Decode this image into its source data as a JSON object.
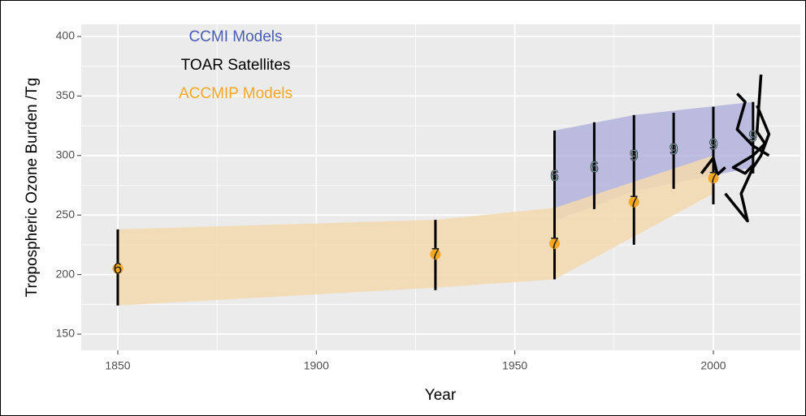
{
  "chart_data": {
    "type": "band",
    "xlabel": "Year",
    "ylabel": "Tropospheric Ozone Burden /Tg",
    "xlim": [
      1840.8,
      2021.9
    ],
    "ylim": [
      136.4,
      410.2
    ],
    "xticks": [
      1850,
      1900,
      1950,
      2000
    ],
    "yticks": [
      150,
      200,
      250,
      300,
      350,
      400
    ],
    "xminor": [
      1875,
      1925,
      1975
    ],
    "yminor": [
      175,
      225,
      275,
      325,
      375
    ],
    "grid": true,
    "series": [
      {
        "name": "CCMI Models",
        "color": "#4a5cb3",
        "band_color": "#b3b3dd",
        "label_color": "#a8e0ec",
        "band": {
          "x": [
            1960,
            1980,
            2010
          ],
          "lower": [
            245,
            270,
            290
          ],
          "upper": [
            321,
            334,
            345
          ]
        },
        "x": [
          1960,
          1970,
          1980,
          1990,
          2000,
          2010
        ],
        "values": [
          283,
          290,
          300,
          305,
          309,
          316
        ],
        "n": [
          6,
          6,
          9,
          9,
          9,
          9
        ]
      },
      {
        "name": "TOAR Satellites",
        "color": "#000000",
        "lines": [
          {
            "x": [
              2006,
              2008,
              2006,
              2010,
              2014
            ],
            "values": [
              352,
              345,
              322,
              308,
              300
            ]
          },
          {
            "x": [
              2012,
              2011,
              2013,
              2010,
              2005,
              2008,
              2010
            ],
            "values": [
              368,
              320,
              310,
              300,
              290,
              285,
              292
            ]
          },
          {
            "x": [
              2011,
              2014,
              2012,
              2010,
              2007,
              2008.6,
              2003
            ],
            "values": [
              342,
              318,
              300,
              290,
              268,
              245,
              268
            ]
          },
          {
            "x": [
              1997,
              2000,
              2001,
              2003
            ],
            "values": [
              285,
              298,
              284,
              290
            ]
          }
        ]
      },
      {
        "name": "ACCMIP Models",
        "color": "#f5a623",
        "band_color": "#f3d9ae",
        "label_color": "#1a1a1a",
        "band": {
          "x": [
            1850,
            1930,
            1960,
            2000
          ],
          "lower": [
            174,
            189,
            196,
            268
          ],
          "upper": [
            238,
            246,
            256,
            300
          ]
        },
        "x": [
          1850,
          1930,
          1960,
          1980,
          2000
        ],
        "values": [
          205,
          217,
          226,
          261,
          281
        ],
        "n": [
          6,
          7,
          7,
          7,
          7
        ]
      }
    ],
    "error_bars": {
      "x": [
        1850,
        1930,
        1960,
        1970,
        1980,
        1990,
        2000,
        2010
      ],
      "low": [
        174,
        187,
        196,
        255,
        225,
        272,
        259,
        285
      ],
      "high": [
        238,
        246,
        321,
        328,
        334,
        336,
        341,
        345
      ]
    }
  }
}
